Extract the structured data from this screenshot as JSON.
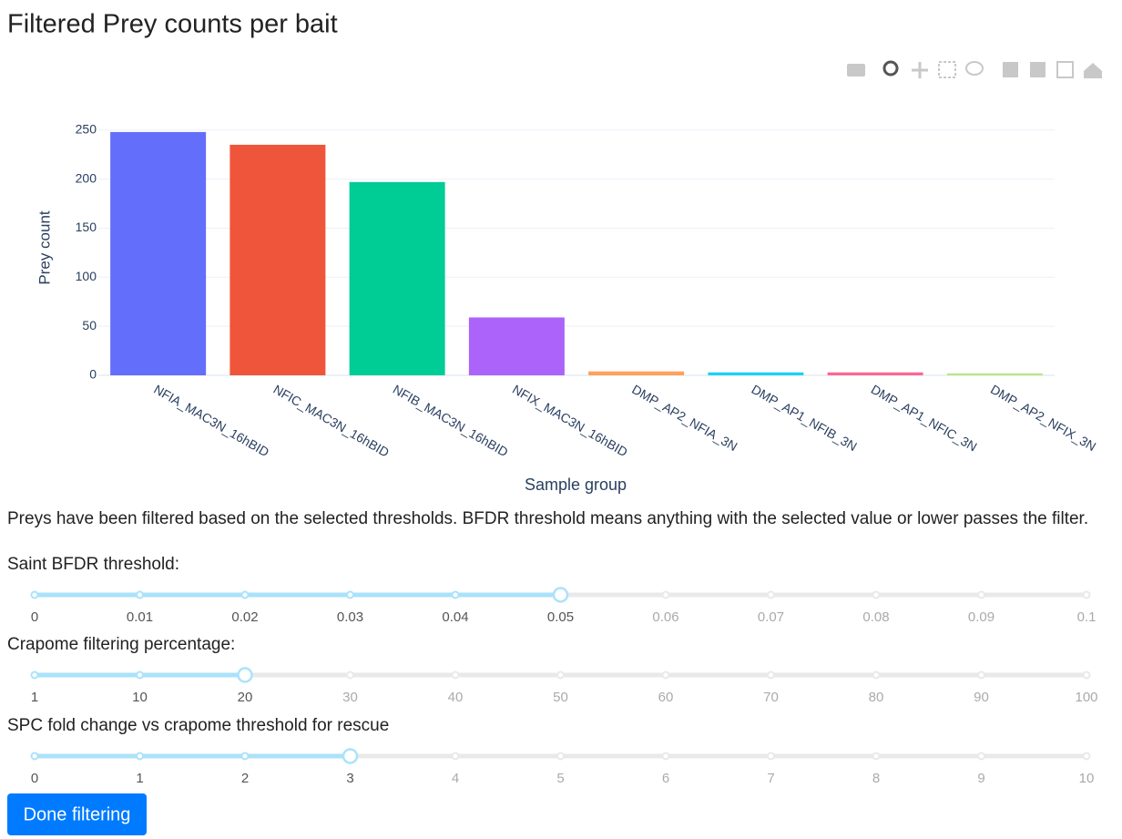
{
  "header": {
    "title": "Filtered Prey counts per bait"
  },
  "chart_data": {
    "type": "bar",
    "categories": [
      "NFIA_MAC3N_16hBID",
      "NFIC_MAC3N_16hBID",
      "NFIB_MAC3N_16hBID",
      "NFIX_MAC3N_16hBID",
      "DMP_AP2_NFIA_3N",
      "DMP_AP1_NFIB_3N",
      "DMP_AP1_NFIC_3N",
      "DMP_AP2_NFIX_3N"
    ],
    "values": [
      248,
      235,
      197,
      59,
      4,
      3,
      3,
      2
    ],
    "colors": [
      "#636efa",
      "#ef553b",
      "#00cc96",
      "#ab63fa",
      "#ffa15a",
      "#19d3f3",
      "#ff6692",
      "#b6e880"
    ],
    "xlabel": "Sample group",
    "ylabel": "Prey count",
    "ylim": [
      0,
      260
    ],
    "yticks": [
      0,
      50,
      100,
      150,
      200,
      250
    ],
    "grid": true
  },
  "description": "Preys have been filtered based on the selected thresholds. BFDR threshold means anything with the selected value or lower passes the filter.",
  "sliders": [
    {
      "label": "Saint BFDR threshold:",
      "marks": [
        0,
        0.01,
        0.02,
        0.03,
        0.04,
        0.05,
        0.06,
        0.07,
        0.08,
        0.09,
        0.1
      ],
      "value": 0.05
    },
    {
      "label": "Crapome filtering percentage:",
      "marks": [
        1,
        10,
        20,
        30,
        40,
        50,
        60,
        70,
        80,
        90,
        100
      ],
      "value": 20
    },
    {
      "label": "SPC fold change vs crapome threshold for rescue",
      "marks": [
        0,
        1,
        2,
        3,
        4,
        5,
        6,
        7,
        8,
        9,
        10
      ],
      "value": 3
    }
  ],
  "button": "Done filtering"
}
